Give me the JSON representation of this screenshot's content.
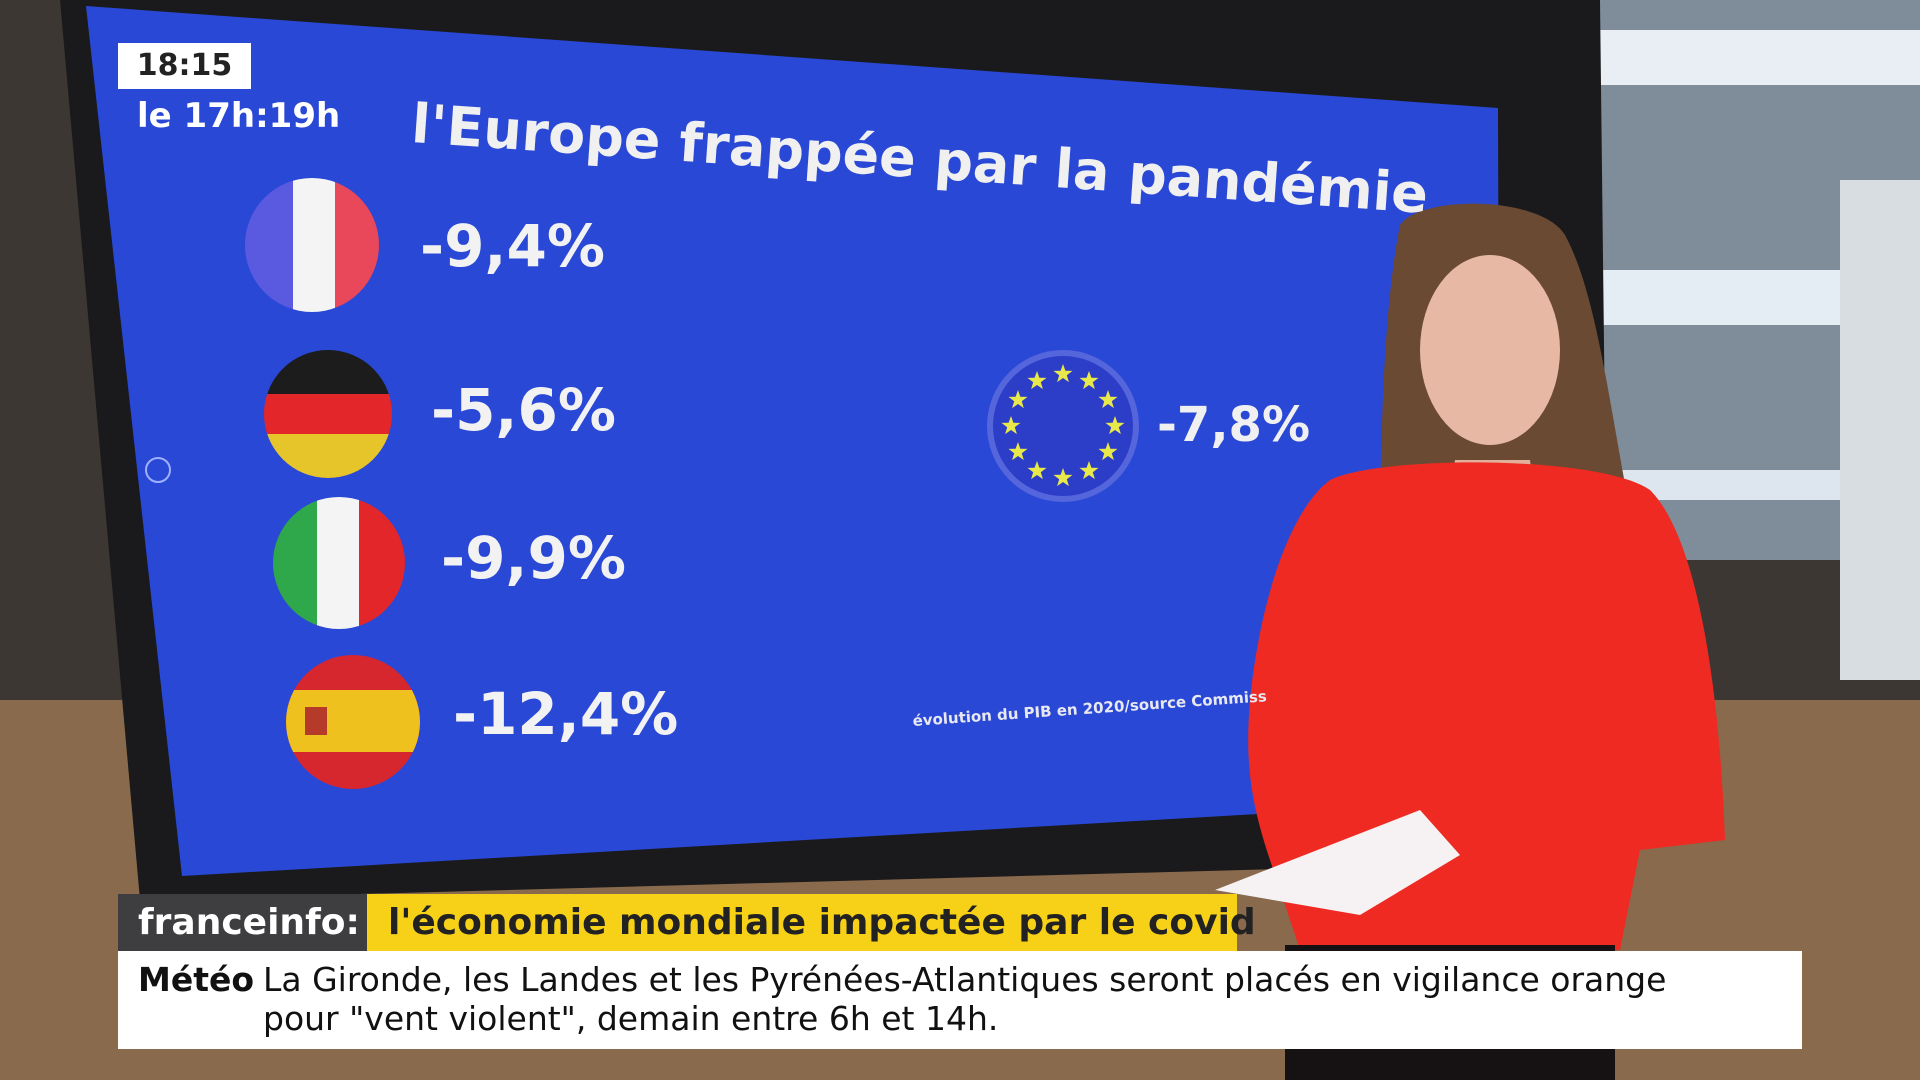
{
  "overlay": {
    "clock": "18:15",
    "program": "le 17h:19h"
  },
  "screen": {
    "title": "l'Europe frappée par la pandémie",
    "values": [
      "-9,4%",
      "-5,6%",
      "-9,9%",
      "-12,4%"
    ],
    "eu_value": "-7,8%",
    "source": "évolution du PIB en 2020/source Commiss"
  },
  "lower_third": {
    "brand": "franceinfo:",
    "headline": "l'économie mondiale impactée par le covid",
    "ticker_label": "Météo",
    "ticker_lines": [
      "La Gironde, les Landes et les Pyrénées-Atlantiques seront placés en vigilance orange",
      "pour \"vent violent\", demain entre 6h et 14h."
    ]
  }
}
